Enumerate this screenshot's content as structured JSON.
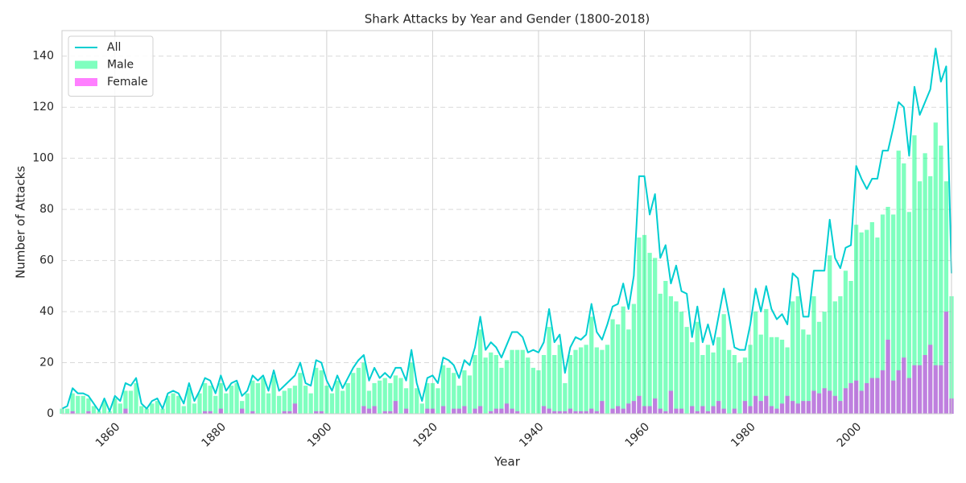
{
  "chart_data": {
    "type": "bar",
    "title": "Shark Attacks by Year and Gender (1800-2018)",
    "xlabel": "Year",
    "ylabel": "Number of Attacks",
    "x": [
      1850,
      1851,
      1852,
      1853,
      1854,
      1855,
      1856,
      1857,
      1858,
      1859,
      1860,
      1861,
      1862,
      1863,
      1864,
      1865,
      1866,
      1867,
      1868,
      1869,
      1870,
      1871,
      1872,
      1873,
      1874,
      1875,
      1876,
      1877,
      1878,
      1879,
      1880,
      1881,
      1882,
      1883,
      1884,
      1885,
      1886,
      1887,
      1888,
      1889,
      1890,
      1891,
      1892,
      1893,
      1894,
      1895,
      1896,
      1897,
      1898,
      1899,
      1900,
      1901,
      1902,
      1903,
      1904,
      1905,
      1906,
      1907,
      1908,
      1909,
      1910,
      1911,
      1912,
      1913,
      1914,
      1915,
      1916,
      1917,
      1918,
      1919,
      1920,
      1921,
      1922,
      1923,
      1924,
      1925,
      1926,
      1927,
      1928,
      1929,
      1930,
      1931,
      1932,
      1933,
      1934,
      1935,
      1936,
      1937,
      1938,
      1939,
      1940,
      1941,
      1942,
      1943,
      1944,
      1945,
      1946,
      1947,
      1948,
      1949,
      1950,
      1951,
      1952,
      1953,
      1954,
      1955,
      1956,
      1957,
      1958,
      1959,
      1960,
      1961,
      1962,
      1963,
      1964,
      1965,
      1966,
      1967,
      1968,
      1969,
      1970,
      1971,
      1972,
      1973,
      1974,
      1975,
      1976,
      1977,
      1978,
      1979,
      1980,
      1981,
      1982,
      1983,
      1984,
      1985,
      1986,
      1987,
      1988,
      1989,
      1990,
      1991,
      1992,
      1993,
      1994,
      1995,
      1996,
      1997,
      1998,
      1999,
      2000,
      2001,
      2002,
      2003,
      2004,
      2005,
      2006,
      2007,
      2008,
      2009,
      2010,
      2011,
      2012,
      2013,
      2014,
      2015,
      2016,
      2017,
      2018
    ],
    "series": [
      {
        "name": "All",
        "type": "line",
        "color": "#00ced1",
        "values": [
          2,
          3,
          10,
          8,
          8,
          7,
          4,
          1,
          6,
          1,
          7,
          5,
          12,
          11,
          14,
          4,
          2,
          5,
          6,
          2,
          8,
          9,
          8,
          4,
          12,
          5,
          9,
          14,
          13,
          8,
          15,
          9,
          12,
          13,
          7,
          9,
          15,
          13,
          15,
          9,
          17,
          9,
          11,
          13,
          15,
          20,
          12,
          11,
          21,
          20,
          13,
          9,
          15,
          10,
          14,
          18,
          21,
          23,
          13,
          18,
          14,
          16,
          14,
          18,
          18,
          13,
          25,
          12,
          5,
          14,
          15,
          12,
          22,
          21,
          19,
          14,
          21,
          19,
          26,
          38,
          25,
          28,
          26,
          22,
          27,
          32,
          32,
          30,
          24,
          25,
          24,
          28,
          41,
          28,
          31,
          16,
          26,
          30,
          29,
          31,
          43,
          32,
          29,
          35,
          42,
          43,
          51,
          41,
          54,
          93,
          93,
          78,
          86,
          61,
          66,
          51,
          58,
          48,
          47,
          30,
          42,
          28,
          35,
          27,
          38,
          49,
          38,
          26,
          25,
          25,
          35,
          49,
          40,
          50,
          41,
          37,
          39,
          35,
          55,
          53,
          38,
          38,
          56,
          56,
          56,
          76,
          61,
          57,
          65,
          66,
          97,
          92,
          88,
          92,
          92,
          103,
          103,
          112,
          122,
          120,
          101,
          128,
          117,
          122,
          127,
          143,
          130,
          136,
          55
        ]
      },
      {
        "name": "Male",
        "type": "bar",
        "color": "#00ff7f",
        "opacity": 0.5,
        "values": [
          2,
          2,
          8,
          7,
          7,
          6,
          3,
          1,
          5,
          1,
          6,
          4,
          9,
          9,
          12,
          3,
          2,
          4,
          5,
          2,
          7,
          8,
          7,
          3,
          10,
          4,
          8,
          12,
          11,
          7,
          12,
          8,
          11,
          12,
          5,
          8,
          13,
          12,
          14,
          8,
          15,
          7,
          9,
          10,
          11,
          16,
          11,
          8,
          18,
          17,
          11,
          8,
          13,
          9,
          12,
          16,
          18,
          20,
          9,
          12,
          13,
          14,
          12,
          15,
          14,
          10,
          20,
          10,
          4,
          12,
          12,
          10,
          19,
          18,
          16,
          11,
          17,
          15,
          23,
          33,
          22,
          24,
          23,
          18,
          21,
          25,
          25,
          25,
          22,
          18,
          17,
          23,
          34,
          23,
          27,
          12,
          23,
          25,
          26,
          27,
          38,
          26,
          25,
          27,
          37,
          35,
          42,
          33,
          43,
          69,
          70,
          63,
          61,
          47,
          52,
          46,
          44,
          40,
          34,
          28,
          36,
          23,
          27,
          24,
          30,
          39,
          25,
          23,
          20,
          22,
          27,
          40,
          31,
          41,
          30,
          30,
          29,
          26,
          44,
          46,
          33,
          31,
          46,
          36,
          40,
          62,
          44,
          46,
          56,
          52,
          74,
          71,
          72,
          75,
          69,
          78,
          81,
          78,
          103,
          98,
          79,
          109,
          91,
          102,
          93,
          114,
          105,
          91,
          46
        ]
      },
      {
        "name": "Female",
        "type": "bar",
        "color": "#ff00ff",
        "opacity": 0.5,
        "values": [
          0,
          0,
          1,
          0,
          0,
          1,
          0,
          0,
          0,
          0,
          0,
          0,
          2,
          0,
          0,
          0,
          0,
          0,
          0,
          0,
          0,
          0,
          0,
          0,
          0,
          0,
          0,
          1,
          1,
          0,
          2,
          0,
          0,
          0,
          2,
          0,
          1,
          0,
          0,
          0,
          0,
          0,
          1,
          1,
          4,
          0,
          0,
          0,
          1,
          1,
          0,
          0,
          0,
          0,
          0,
          0,
          0,
          3,
          2,
          3,
          0,
          1,
          1,
          5,
          0,
          2,
          0,
          0,
          0,
          2,
          2,
          0,
          3,
          0,
          2,
          2,
          3,
          0,
          2,
          3,
          0,
          1,
          2,
          2,
          4,
          2,
          1,
          0,
          0,
          0,
          0,
          3,
          2,
          1,
          1,
          1,
          2,
          1,
          1,
          1,
          2,
          1,
          5,
          0,
          2,
          3,
          2,
          4,
          5,
          7,
          3,
          3,
          6,
          2,
          1,
          9,
          2,
          2,
          0,
          3,
          1,
          3,
          1,
          3,
          5,
          2,
          0,
          2,
          0,
          5,
          3,
          7,
          5,
          7,
          3,
          2,
          4,
          7,
          5,
          4,
          5,
          5,
          9,
          8,
          10,
          9,
          7,
          5,
          10,
          12,
          13,
          9,
          12,
          14,
          14,
          17,
          29,
          13,
          17,
          22,
          14,
          19,
          19,
          23,
          27,
          19,
          19,
          40,
          6
        ]
      }
    ],
    "xlim": [
      1850,
      2018
    ],
    "xticks": [
      1860,
      1880,
      1900,
      1920,
      1940,
      1960,
      1980,
      2000
    ],
    "ylim": [
      0,
      150
    ],
    "yticks": [
      0,
      20,
      40,
      60,
      80,
      100,
      120,
      140
    ],
    "grid": true,
    "legend": "upper left"
  }
}
